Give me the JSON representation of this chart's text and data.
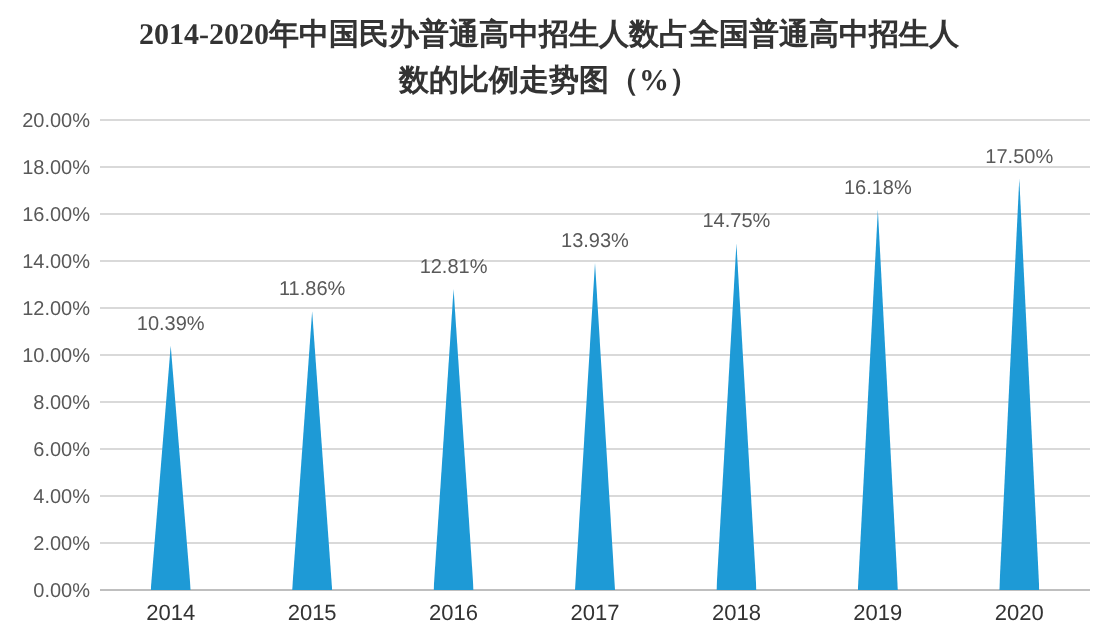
{
  "chart_data": {
    "type": "bar",
    "title": "2014-2020年中国民办普通高中招生人数占全国普通高中招生人数的比例走势图（%）",
    "categories": [
      "2014",
      "2015",
      "2016",
      "2017",
      "2018",
      "2019",
      "2020"
    ],
    "values": [
      10.39,
      11.86,
      12.81,
      13.93,
      14.75,
      16.18,
      17.5
    ],
    "value_labels": [
      "10.39%",
      "11.86%",
      "12.81%",
      "13.93%",
      "14.75%",
      "16.18%",
      "17.50%"
    ],
    "color": "#1e9ad6",
    "ylim": [
      0,
      20
    ],
    "yticks": [
      {
        "value": 0,
        "label": "0.00%"
      },
      {
        "value": 2,
        "label": "2.00%"
      },
      {
        "value": 4,
        "label": "4.00%"
      },
      {
        "value": 6,
        "label": "6.00%"
      },
      {
        "value": 8,
        "label": "8.00%"
      },
      {
        "value": 10,
        "label": "10.00%"
      },
      {
        "value": 12,
        "label": "12.00%"
      },
      {
        "value": 14,
        "label": "14.00%"
      },
      {
        "value": 16,
        "label": "16.00%"
      },
      {
        "value": 18,
        "label": "18.00%"
      },
      {
        "value": 20,
        "label": "20.00%"
      }
    ],
    "grid": "y"
  }
}
